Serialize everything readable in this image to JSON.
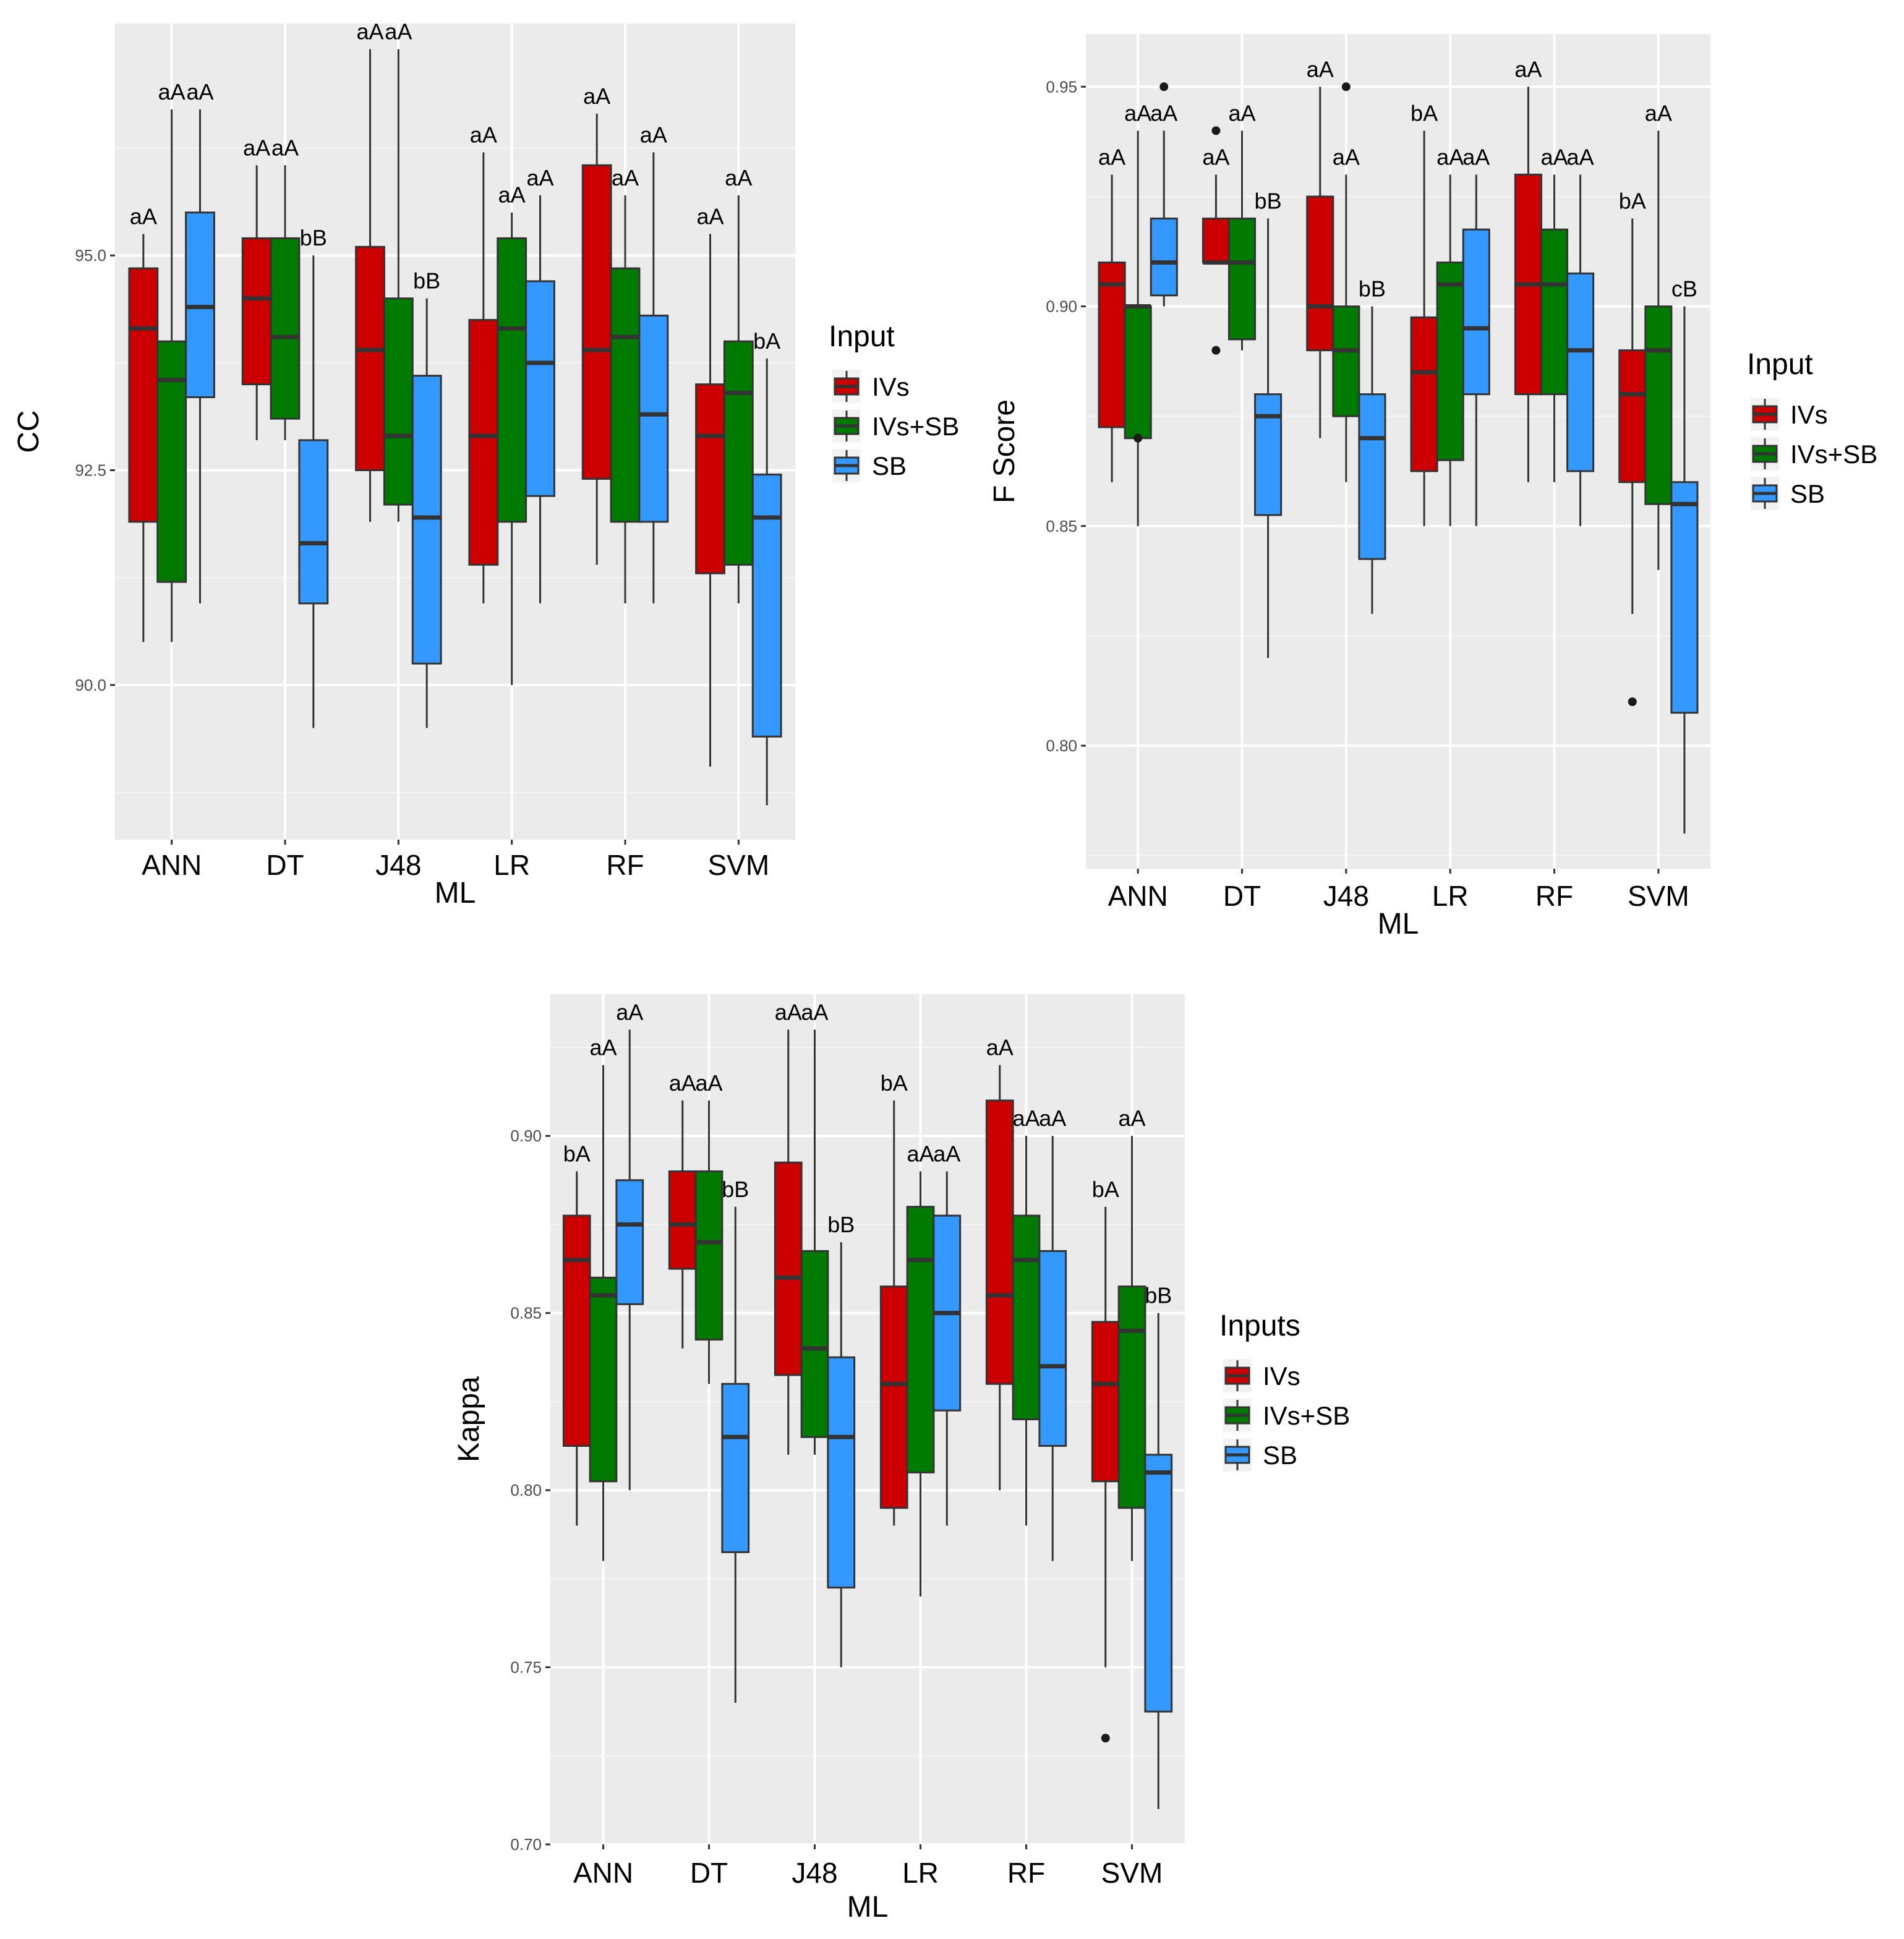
{
  "chart_data": [
    {
      "type": "boxplot",
      "panel": "cc",
      "xlabel": "ML",
      "ylabel": "CC",
      "ylim": [
        88.2,
        97.7
      ],
      "yticks": [
        90.0,
        92.5,
        95.0
      ],
      "ytick_labels": [
        "90.0",
        "92.5",
        "95.0"
      ],
      "categories": [
        "ANN",
        "DT",
        "J48",
        "LR",
        "RF",
        "SVM"
      ],
      "legend": {
        "title": "Input",
        "labels": [
          "IVs",
          "IVs+SB",
          "SB"
        ]
      },
      "series": [
        {
          "name": "IVs",
          "color": "#cc0000",
          "boxes": [
            {
              "min": 90.5,
              "q1": 91.9,
              "median": 94.15,
              "q3": 94.85,
              "max": 95.25,
              "label": "aA"
            },
            {
              "min": 92.85,
              "q1": 93.5,
              "median": 94.5,
              "q3": 95.2,
              "max": 96.05,
              "label": "aA"
            },
            {
              "min": 91.9,
              "q1": 92.5,
              "median": 93.9,
              "q3": 95.1,
              "max": 97.4,
              "label": "aA"
            },
            {
              "min": 90.95,
              "q1": 91.4,
              "median": 92.9,
              "q3": 94.25,
              "max": 96.2,
              "label": "aA"
            },
            {
              "min": 91.4,
              "q1": 92.4,
              "median": 93.9,
              "q3": 96.05,
              "max": 96.65,
              "label": "aA"
            },
            {
              "min": 89.05,
              "q1": 91.3,
              "median": 92.9,
              "q3": 93.5,
              "max": 95.25,
              "label": "aA"
            }
          ]
        },
        {
          "name": "IVs+SB",
          "color": "#007a00",
          "boxes": [
            {
              "min": 90.5,
              "q1": 91.2,
              "median": 93.55,
              "q3": 94.0,
              "max": 96.7,
              "label": "aA"
            },
            {
              "min": 92.85,
              "q1": 93.1,
              "median": 94.05,
              "q3": 95.2,
              "max": 96.05,
              "label": "aA"
            },
            {
              "min": 91.9,
              "q1": 92.1,
              "median": 92.9,
              "q3": 94.5,
              "max": 97.4,
              "label": "aA"
            },
            {
              "min": 90.0,
              "q1": 91.9,
              "median": 94.15,
              "q3": 95.2,
              "max": 95.5,
              "label": "aA"
            },
            {
              "min": 90.95,
              "q1": 91.9,
              "median": 94.05,
              "q3": 94.85,
              "max": 95.7,
              "label": "aA"
            },
            {
              "min": 90.95,
              "q1": 91.4,
              "median": 93.4,
              "q3": 94.0,
              "max": 95.7,
              "label": "aA"
            }
          ]
        },
        {
          "name": "SB",
          "color": "#3399ff",
          "boxes": [
            {
              "min": 90.95,
              "q1": 93.35,
              "median": 94.4,
              "q3": 95.5,
              "max": 96.7,
              "label": "aA"
            },
            {
              "min": 89.5,
              "q1": 90.95,
              "median": 91.65,
              "q3": 92.85,
              "max": 95.0,
              "label": "bB"
            },
            {
              "min": 89.5,
              "q1": 90.25,
              "median": 91.95,
              "q3": 93.6,
              "max": 94.5,
              "label": "bB"
            },
            {
              "min": 90.95,
              "q1": 92.2,
              "median": 93.75,
              "q3": 94.7,
              "max": 95.7,
              "label": "aA"
            },
            {
              "min": 90.95,
              "q1": 91.9,
              "median": 93.15,
              "q3": 94.3,
              "max": 96.2,
              "label": "aA"
            },
            {
              "min": 88.6,
              "q1": 89.4,
              "median": 91.95,
              "q3": 92.45,
              "max": 93.8,
              "label": "bA"
            }
          ]
        }
      ],
      "outliers": []
    },
    {
      "type": "boxplot",
      "panel": "fscore",
      "xlabel": "ML",
      "ylabel": "F Score",
      "ylim": [
        0.772,
        0.962
      ],
      "yticks": [
        0.8,
        0.85,
        0.9,
        0.95
      ],
      "ytick_labels": [
        "0.80",
        "0.85",
        "0.90",
        "0.95"
      ],
      "categories": [
        "ANN",
        "DT",
        "J48",
        "LR",
        "RF",
        "SVM"
      ],
      "legend": {
        "title": "Input",
        "labels": [
          "IVs",
          "IVs+SB",
          "SB"
        ]
      },
      "series": [
        {
          "name": "IVs",
          "color": "#cc0000",
          "boxes": [
            {
              "min": 0.86,
              "q1": 0.8725,
              "median": 0.905,
              "q3": 0.91,
              "max": 0.93,
              "label": "aA"
            },
            {
              "min": 0.91,
              "q1": 0.91,
              "median": 0.91,
              "q3": 0.92,
              "max": 0.93,
              "label": "aA"
            },
            {
              "min": 0.87,
              "q1": 0.89,
              "median": 0.9,
              "q3": 0.925,
              "max": 0.95,
              "label": "aA"
            },
            {
              "min": 0.85,
              "q1": 0.8625,
              "median": 0.885,
              "q3": 0.8975,
              "max": 0.94,
              "label": "bA"
            },
            {
              "min": 0.86,
              "q1": 0.88,
              "median": 0.905,
              "q3": 0.93,
              "max": 0.95,
              "label": "aA"
            },
            {
              "min": 0.83,
              "q1": 0.86,
              "median": 0.88,
              "q3": 0.89,
              "max": 0.92,
              "label": "bA"
            }
          ]
        },
        {
          "name": "IVs+SB",
          "color": "#007a00",
          "boxes": [
            {
              "min": 0.85,
              "q1": 0.87,
              "median": 0.9,
              "q3": 0.9,
              "max": 0.94,
              "label": "aA"
            },
            {
              "min": 0.89,
              "q1": 0.8925,
              "median": 0.91,
              "q3": 0.92,
              "max": 0.94,
              "label": "aA"
            },
            {
              "min": 0.86,
              "q1": 0.875,
              "median": 0.89,
              "q3": 0.9,
              "max": 0.93,
              "label": "aA"
            },
            {
              "min": 0.85,
              "q1": 0.865,
              "median": 0.905,
              "q3": 0.91,
              "max": 0.93,
              "label": "aA"
            },
            {
              "min": 0.86,
              "q1": 0.88,
              "median": 0.905,
              "q3": 0.9175,
              "max": 0.93,
              "label": "aA"
            },
            {
              "min": 0.84,
              "q1": 0.855,
              "median": 0.89,
              "q3": 0.9,
              "max": 0.94,
              "label": "aA"
            }
          ]
        },
        {
          "name": "SB",
          "color": "#3399ff",
          "boxes": [
            {
              "min": 0.9,
              "q1": 0.9025,
              "median": 0.91,
              "q3": 0.92,
              "max": 0.94,
              "label": "aA"
            },
            {
              "min": 0.82,
              "q1": 0.8525,
              "median": 0.875,
              "q3": 0.88,
              "max": 0.92,
              "label": "bB"
            },
            {
              "min": 0.83,
              "q1": 0.8425,
              "median": 0.87,
              "q3": 0.88,
              "max": 0.9,
              "label": "bB"
            },
            {
              "min": 0.85,
              "q1": 0.88,
              "median": 0.895,
              "q3": 0.9175,
              "max": 0.93,
              "label": "aA"
            },
            {
              "min": 0.85,
              "q1": 0.8625,
              "median": 0.89,
              "q3": 0.9075,
              "max": 0.93,
              "label": "aA"
            },
            {
              "min": 0.78,
              "q1": 0.8075,
              "median": 0.855,
              "q3": 0.86,
              "max": 0.9,
              "label": "cB"
            }
          ]
        }
      ],
      "outliers": [
        {
          "category": "ANN",
          "series": "SB",
          "value": 0.95
        },
        {
          "category": "ANN",
          "series": "IVs+SB",
          "value": 0.87
        },
        {
          "category": "DT",
          "series": "IVs",
          "value": 0.94
        },
        {
          "category": "DT",
          "series": "IVs",
          "value": 0.89
        },
        {
          "category": "J48",
          "series": "IVs+SB",
          "value": 0.95
        },
        {
          "category": "SVM",
          "series": "IVs",
          "value": 0.81
        }
      ]
    },
    {
      "type": "boxplot",
      "panel": "kappa",
      "xlabel": "ML",
      "ylabel": "Kappa",
      "ylim": [
        0.7,
        0.94
      ],
      "yticks": [
        0.7,
        0.75,
        0.8,
        0.85,
        0.9
      ],
      "ytick_labels": [
        "0.70",
        "0.75",
        "0.80",
        "0.85",
        "0.90"
      ],
      "categories": [
        "ANN",
        "DT",
        "J48",
        "LR",
        "RF",
        "SVM"
      ],
      "legend": {
        "title": "Inputs",
        "labels": [
          "IVs",
          "IVs+SB",
          "SB"
        ]
      },
      "series": [
        {
          "name": "IVs",
          "color": "#cc0000",
          "boxes": [
            {
              "min": 0.79,
              "q1": 0.8125,
              "median": 0.865,
              "q3": 0.8775,
              "max": 0.89,
              "label": "bA"
            },
            {
              "min": 0.84,
              "q1": 0.8625,
              "median": 0.875,
              "q3": 0.89,
              "max": 0.91,
              "label": "aA"
            },
            {
              "min": 0.81,
              "q1": 0.8325,
              "median": 0.86,
              "q3": 0.8925,
              "max": 0.93,
              "label": "aA"
            },
            {
              "min": 0.79,
              "q1": 0.795,
              "median": 0.83,
              "q3": 0.8575,
              "max": 0.91,
              "label": "bA"
            },
            {
              "min": 0.8,
              "q1": 0.83,
              "median": 0.855,
              "q3": 0.91,
              "max": 0.92,
              "label": "aA"
            },
            {
              "min": 0.75,
              "q1": 0.8025,
              "median": 0.83,
              "q3": 0.8475,
              "max": 0.88,
              "label": "bA"
            }
          ]
        },
        {
          "name": "IVs+SB",
          "color": "#007a00",
          "boxes": [
            {
              "min": 0.78,
              "q1": 0.8025,
              "median": 0.855,
              "q3": 0.86,
              "max": 0.92,
              "label": "aA"
            },
            {
              "min": 0.83,
              "q1": 0.8425,
              "median": 0.87,
              "q3": 0.89,
              "max": 0.91,
              "label": "aA"
            },
            {
              "min": 0.81,
              "q1": 0.815,
              "median": 0.84,
              "q3": 0.8675,
              "max": 0.93,
              "label": "aA"
            },
            {
              "min": 0.77,
              "q1": 0.805,
              "median": 0.865,
              "q3": 0.88,
              "max": 0.89,
              "label": "aA"
            },
            {
              "min": 0.79,
              "q1": 0.82,
              "median": 0.865,
              "q3": 0.8775,
              "max": 0.9,
              "label": "aA"
            },
            {
              "min": 0.78,
              "q1": 0.795,
              "median": 0.845,
              "q3": 0.8575,
              "max": 0.9,
              "label": "aA"
            }
          ]
        },
        {
          "name": "SB",
          "color": "#3399ff",
          "boxes": [
            {
              "min": 0.8,
              "q1": 0.8525,
              "median": 0.875,
              "q3": 0.8875,
              "max": 0.93,
              "label": "aA"
            },
            {
              "min": 0.74,
              "q1": 0.7825,
              "median": 0.815,
              "q3": 0.83,
              "max": 0.88,
              "label": "bB"
            },
            {
              "min": 0.75,
              "q1": 0.7725,
              "median": 0.815,
              "q3": 0.8375,
              "max": 0.87,
              "label": "bB"
            },
            {
              "min": 0.79,
              "q1": 0.8225,
              "median": 0.85,
              "q3": 0.8775,
              "max": 0.89,
              "label": "aA"
            },
            {
              "min": 0.78,
              "q1": 0.8125,
              "median": 0.835,
              "q3": 0.8675,
              "max": 0.9,
              "label": "aA"
            },
            {
              "min": 0.71,
              "q1": 0.7375,
              "median": 0.805,
              "q3": 0.81,
              "max": 0.85,
              "label": "bB"
            }
          ]
        }
      ],
      "outliers": [
        {
          "category": "SVM",
          "series": "IVs",
          "value": 0.73
        }
      ]
    }
  ]
}
